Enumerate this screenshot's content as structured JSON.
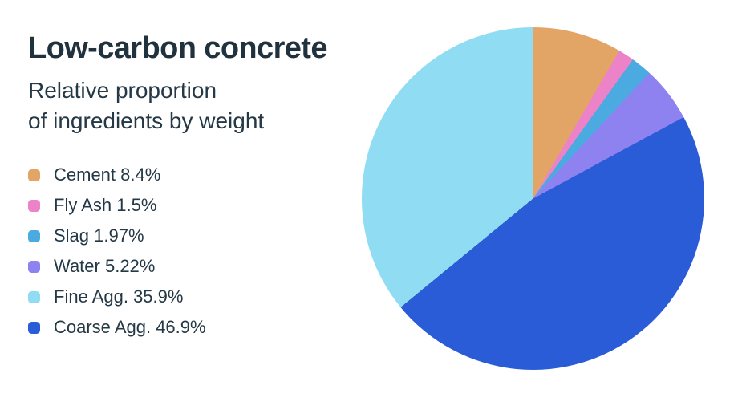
{
  "page": {
    "background": "#ffffff",
    "text_color": "#22333f"
  },
  "header": {
    "title": "Low-carbon concrete",
    "subtitle_line1": "Relative proportion",
    "subtitle_line2": "of ingredients by weight"
  },
  "chart_data": {
    "type": "pie",
    "title": "Low-carbon concrete",
    "subtitle": "Relative proportion of ingredients by weight",
    "slices": [
      {
        "label": "Cement",
        "value": 8.4,
        "legend_text": "Cement 8.4%",
        "color": "#e2a566"
      },
      {
        "label": "Fly Ash",
        "value": 1.5,
        "legend_text": "Fly Ash 1.5%",
        "color": "#ec82c8"
      },
      {
        "label": "Slag",
        "value": 1.97,
        "legend_text": "Slag 1.97%",
        "color": "#4babe0"
      },
      {
        "label": "Water",
        "value": 5.22,
        "legend_text": "Water 5.22%",
        "color": "#8e82f0"
      },
      {
        "label": "Fine Agg.",
        "value": 35.9,
        "legend_text": "Fine Agg. 35.9%",
        "color": "#90dcf2"
      },
      {
        "label": "Coarse Agg.",
        "value": 46.9,
        "legend_text": "Coarse Agg. 46.9%",
        "color": "#2b5cd8"
      }
    ],
    "layout": {
      "start_angle_deg": 0,
      "direction": "clockwise",
      "draw_order": [
        0,
        1,
        2,
        3,
        5,
        4
      ],
      "legend_position": "left",
      "labels_on_pie": false,
      "grid": false
    }
  }
}
